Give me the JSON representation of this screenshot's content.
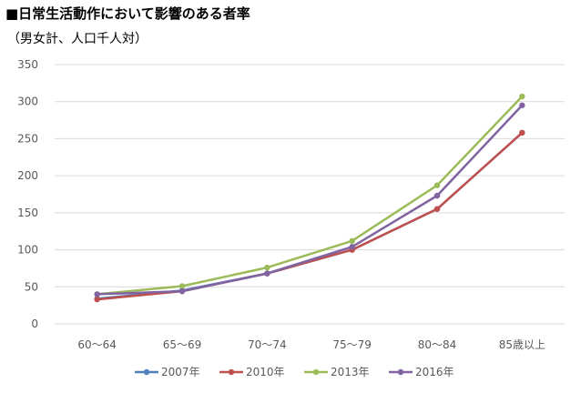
{
  "header": {
    "title": "■日常生活動作において影響のある者率",
    "subtitle": "（男女計、人口千人対）"
  },
  "chart_data": {
    "type": "line",
    "categories": [
      "60～64",
      "65～69",
      "70～74",
      "75～79",
      "80～84",
      "85歳以上"
    ],
    "series": [
      {
        "name": "2007年",
        "color": "#4f81bd",
        "values": [
          34,
          45,
          68,
          100,
          155,
          258
        ]
      },
      {
        "name": "2010年",
        "color": "#c0504d",
        "values": [
          33,
          44,
          68,
          100,
          155,
          258
        ]
      },
      {
        "name": "2013年",
        "color": "#9bbb59",
        "values": [
          40,
          51,
          76,
          112,
          187,
          307
        ]
      },
      {
        "name": "2016年",
        "color": "#8064a2",
        "values": [
          40,
          44,
          68,
          104,
          173,
          295
        ]
      }
    ],
    "ylim": [
      0,
      350
    ],
    "yticks": [
      0,
      50,
      100,
      150,
      200,
      250,
      300,
      350
    ],
    "grid": true,
    "legend_position": "bottom"
  }
}
